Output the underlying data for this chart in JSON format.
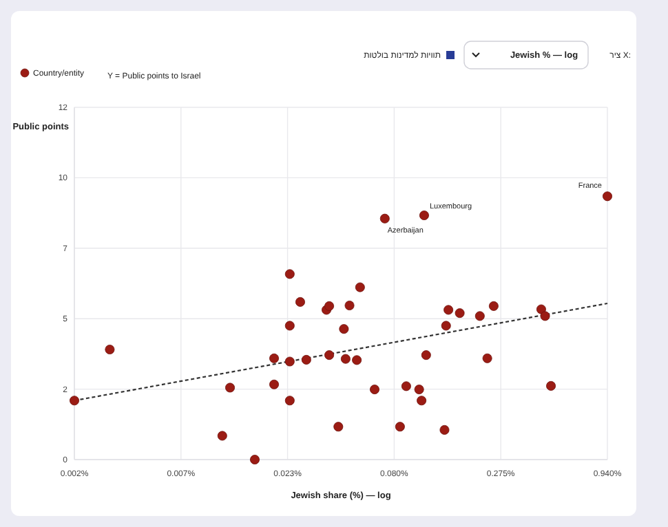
{
  "chart_data": {
    "type": "scatter",
    "xlabel": "Jewish share (%) — log",
    "ylabel": "Public points",
    "annotations": [
      "ציר X:",
      "Jewish % — log",
      "תוויות למדינות בולטות",
      "Y = Public points to Israel",
      {
        "text": "Azerbaijan",
        "x": 0.072,
        "y": 8.21
      },
      {
        "text": "Luxembourg",
        "x": 0.1134,
        "y": 8.32
      },
      {
        "text": "France",
        "x": 0.94,
        "y": 8.97
      }
    ],
    "log": "x",
    "grid": true,
    "legend": "top left",
    "marker": "circle",
    "xlim": [
      0.002,
      0.94
    ],
    "ylim": [
      0,
      12
    ],
    "xticks": [
      {
        "value": 0.002,
        "label": "0.002%"
      },
      {
        "value": 0.006846,
        "label": "0.007%"
      },
      {
        "value": 0.023433,
        "label": "0.023%"
      },
      {
        "value": 0.08021,
        "label": "0.080%"
      },
      {
        "value": 0.27455,
        "label": "0.275%"
      },
      {
        "value": 0.94,
        "label": "0.940%"
      }
    ],
    "yticks": [
      {
        "value": 0,
        "label": "0"
      },
      {
        "value": 2.4,
        "label": "2"
      },
      {
        "value": 4.8,
        "label": "5"
      },
      {
        "value": 7.2,
        "label": "7"
      },
      {
        "value": 9.6,
        "label": "10"
      },
      {
        "value": 12,
        "label": "12"
      }
    ],
    "series": [
      {
        "name": "Country/entity",
        "type": "scatter",
        "color": "#9b1c14",
        "x": [
          0.002,
          0.00301,
          0.01103,
          0.01206,
          0.01605,
          0.02006,
          0.02006,
          0.02404,
          0.02404,
          0.02404,
          0.02404,
          0.02712,
          0.0291,
          0.0367,
          0.0379,
          0.0379,
          0.0421,
          0.0449,
          0.0479,
          0.0541,
          0.0458,
          0.0521,
          0.064,
          0.072,
          0.1134,
          0.0858,
          0.0922,
          0.107,
          0.11,
          0.116,
          0.1434,
          0.146,
          0.15,
          0.171,
          0.2157,
          0.253,
          0.235,
          0.438,
          0.458,
          0.49,
          0.94
        ],
        "values": [
          2.01,
          3.75,
          0.81,
          2.45,
          0.0,
          3.45,
          2.56,
          6.32,
          4.56,
          3.34,
          2.01,
          5.37,
          3.4,
          5.1,
          5.23,
          3.56,
          1.12,
          4.45,
          5.25,
          5.87,
          3.43,
          3.39,
          2.39,
          8.21,
          8.32,
          1.12,
          2.5,
          2.39,
          2.01,
          3.56,
          1.01,
          4.56,
          5.1,
          4.99,
          4.89,
          5.23,
          3.45,
          5.12,
          4.89,
          2.51,
          8.97
        ]
      },
      {
        "type": "line",
        "color": "#333333",
        "line_style": "dashed",
        "marker": "none",
        "x": [
          0.002,
          0.94
        ],
        "values": [
          2.01,
          5.32
        ]
      }
    ]
  }
}
